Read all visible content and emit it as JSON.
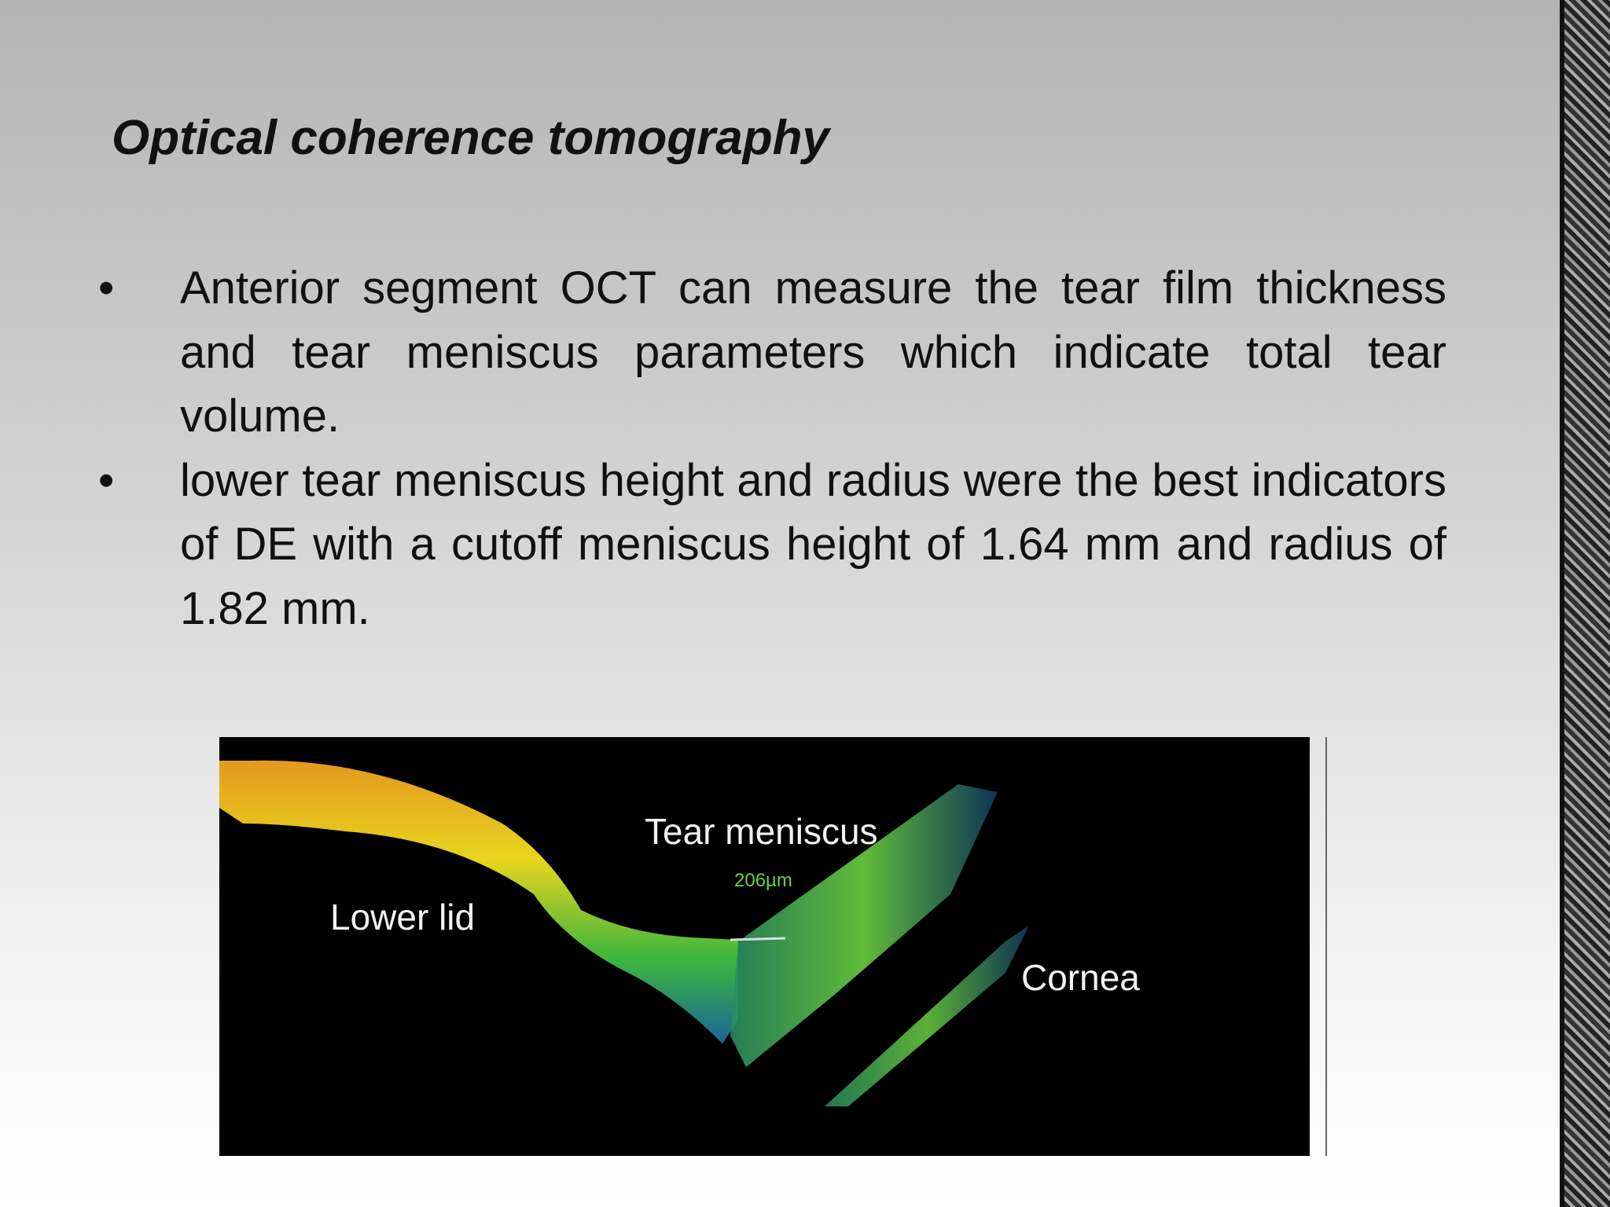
{
  "slide": {
    "title": "Optical coherence tomography",
    "bullets": [
      "Anterior segment OCT can measure the tear film thickness and tear meniscus parameters which indicate total tear volume.",
      "lower tear meniscus height and radius were the best indicators of DE with a cutoff meniscus height of 1.64 mm and radius of 1.82 mm."
    ],
    "figure": {
      "tear_meniscus": "Tear meniscus",
      "measurement": "206µm",
      "lower_lid": "Lower lid",
      "cornea": "Cornea"
    }
  }
}
